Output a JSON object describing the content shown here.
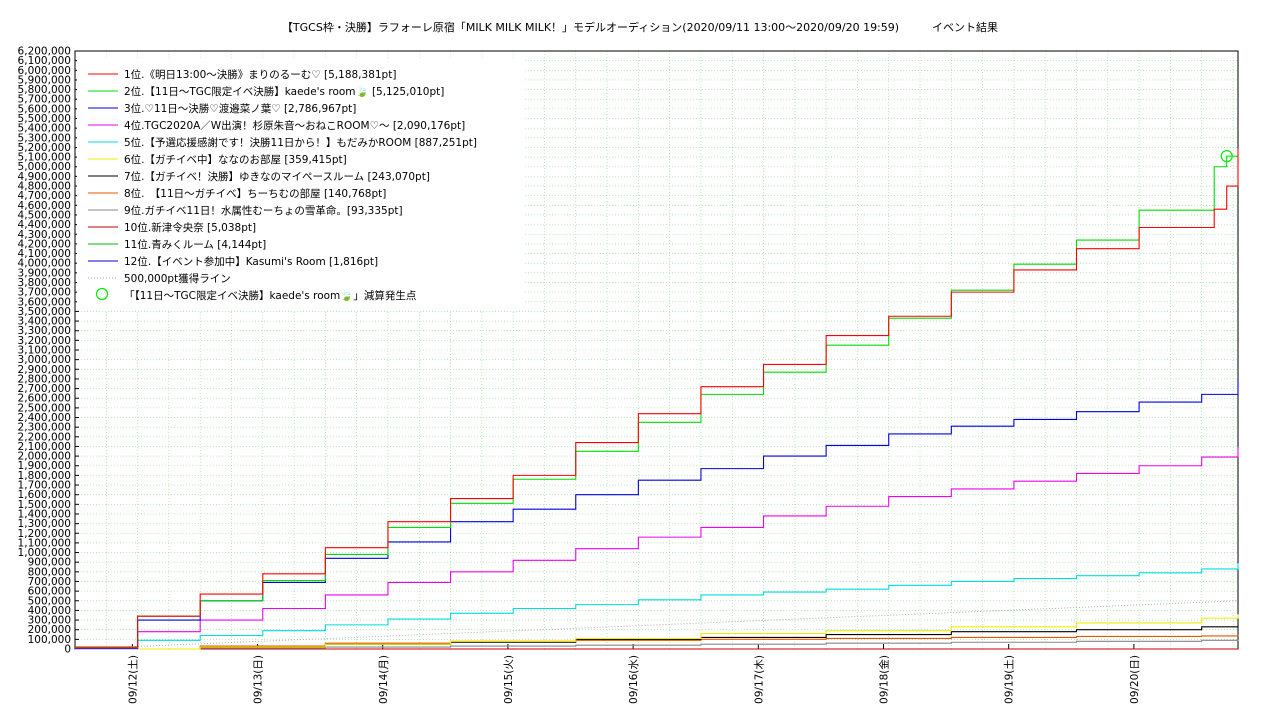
{
  "title": "【TGCS枠・決勝】ラフォーレ原宿「MILK MILK MILK！」モデルオーディション(2020/09/11 13:00〜2020/09/20 19:59)　　　イベント結果",
  "chart_data": {
    "type": "line",
    "title": "【TGCS枠・決勝】ラフォーレ原宿「MILK MILK MILK！」モデルオーディション(2020/09/11 13:00〜2020/09/20 19:59)　　　イベント結果",
    "xlabel": "",
    "ylabel": "",
    "x_range": [
      "2020/09/11 13:00",
      "2020/09/20 19:59"
    ],
    "x_ticks": [
      "09/12(土)",
      "09/13(日)",
      "09/14(月)",
      "09/15(火)",
      "09/16(水)",
      "09/17(木)",
      "09/18(金)",
      "09/19(土)",
      "09/20(日)"
    ],
    "ylim": [
      0,
      6200000
    ],
    "y_tick_step": 100000,
    "grid": true,
    "legend_position": "top-left",
    "series": [
      {
        "name": "1位.《明日13:00〜決勝》まりのるーむ♡ [5,188,381pt]",
        "color": "#ff0000",
        "x_days": [
          0,
          0.5,
          1,
          1.5,
          2,
          2.5,
          3,
          3.5,
          4,
          4.5,
          5,
          5.5,
          6,
          6.5,
          7,
          7.5,
          8,
          8.5,
          9.1,
          9.2,
          9.29
        ],
        "values": [
          20000,
          340000,
          570000,
          780000,
          1050000,
          1320000,
          1560000,
          1800000,
          2140000,
          2440000,
          2720000,
          2950000,
          3250000,
          3450000,
          3700000,
          3930000,
          4150000,
          4370000,
          4560000,
          4800000,
          5188381
        ]
      },
      {
        "name": "2位.【11日〜TGC限定イベ決勝】kaede's room🍃 [5,125,010pt]",
        "color": "#00dd00",
        "x_days": [
          0,
          0.5,
          1,
          1.5,
          2,
          2.5,
          3,
          3.5,
          4,
          4.5,
          5,
          5.5,
          6,
          6.5,
          7,
          7.5,
          8,
          8.5,
          9.1,
          9.2,
          9.29
        ],
        "values": [
          15000,
          340000,
          500000,
          710000,
          980000,
          1260000,
          1510000,
          1760000,
          2050000,
          2350000,
          2640000,
          2870000,
          3150000,
          3430000,
          3720000,
          3990000,
          4240000,
          4550000,
          5000000,
          5110000,
          5125010
        ]
      },
      {
        "name": "3位.♡11日〜決勝♡渡邉菜ノ葉♡ [2,786,967pt]",
        "color": "#0000dd",
        "x_days": [
          0,
          0.5,
          1,
          1.5,
          2,
          2.5,
          3,
          3.5,
          4,
          4.5,
          5,
          5.5,
          6,
          6.5,
          7,
          7.5,
          8,
          8.5,
          9,
          9.29
        ],
        "values": [
          10000,
          300000,
          500000,
          690000,
          940000,
          1110000,
          1320000,
          1450000,
          1600000,
          1750000,
          1870000,
          2000000,
          2110000,
          2230000,
          2310000,
          2380000,
          2460000,
          2560000,
          2640000,
          2786967
        ]
      },
      {
        "name": "4位.TGC2020A／W出演！杉原朱音〜おねこROOM♡〜 [2,090,176pt]",
        "color": "#ee00ee",
        "x_days": [
          0,
          0.5,
          1,
          1.5,
          2,
          2.5,
          3,
          3.5,
          4,
          4.5,
          5,
          5.5,
          6,
          6.5,
          7,
          7.5,
          8,
          8.5,
          9,
          9.29
        ],
        "values": [
          5000,
          180000,
          300000,
          420000,
          560000,
          690000,
          800000,
          920000,
          1040000,
          1160000,
          1260000,
          1380000,
          1480000,
          1580000,
          1660000,
          1740000,
          1820000,
          1900000,
          1990000,
          2090176
        ]
      },
      {
        "name": "5位.【予選応援感謝です！決勝11日から！】もだみかROOM [887,251pt]",
        "color": "#00dddd",
        "x_days": [
          0,
          0.5,
          1,
          1.5,
          2,
          2.5,
          3,
          3.5,
          4,
          4.5,
          5,
          5.5,
          6,
          6.5,
          7,
          7.5,
          8,
          8.5,
          9,
          9.29
        ],
        "values": [
          3000,
          90000,
          140000,
          190000,
          250000,
          310000,
          370000,
          420000,
          460000,
          510000,
          560000,
          590000,
          620000,
          660000,
          700000,
          730000,
          760000,
          790000,
          830000,
          887251
        ]
      },
      {
        "name": "6位.【ガチイベ中】ななのお部屋 [359,415pt]",
        "color": "#eeee00",
        "x_days": [
          0,
          1,
          2,
          3,
          4,
          5,
          6,
          7,
          8,
          9,
          9.29
        ],
        "values": [
          0,
          20000,
          50000,
          80000,
          110000,
          160000,
          190000,
          230000,
          270000,
          320000,
          359415
        ]
      },
      {
        "name": "7位.【ガチイベ！決勝】ゆきなのマイペースルーム [243,070pt]",
        "color": "#000000",
        "x_days": [
          0,
          1,
          2,
          3,
          4,
          5,
          6,
          7,
          8,
          9,
          9.29
        ],
        "values": [
          0,
          20000,
          50000,
          70000,
          100000,
          120000,
          150000,
          180000,
          200000,
          230000,
          243070
        ]
      },
      {
        "name": "8位.　【11日〜ガチイベ】ちーちむの部屋 [140,768pt]",
        "color": "#ee5500",
        "x_days": [
          0,
          1,
          2,
          3,
          4,
          5,
          6,
          7,
          8,
          9,
          9.29
        ],
        "values": [
          0,
          30000,
          60000,
          80000,
          90000,
          100000,
          110000,
          120000,
          130000,
          135000,
          140768
        ]
      },
      {
        "name": "9位.ガチイベ11日！水属性むーちょの雪革命。[93,335pt]",
        "color": "#888888",
        "x_days": [
          0,
          1,
          2,
          3,
          4,
          5,
          6,
          7,
          8,
          9,
          9.29
        ],
        "values": [
          0,
          10000,
          20000,
          30000,
          40000,
          50000,
          60000,
          70000,
          80000,
          90000,
          93335
        ]
      },
      {
        "name": "10位.新津令央奈 [5,038pt]",
        "color": "#cc0000",
        "x_days": [
          0,
          9.29
        ],
        "values": [
          0,
          5038
        ]
      },
      {
        "name": "11位.青みくルーム [4,144pt]",
        "color": "#00bb00",
        "x_days": [
          0,
          9.29
        ],
        "values": [
          0,
          4144
        ]
      },
      {
        "name": "12位.【イベント参加中】Kasumi's Room [1,816pt]",
        "color": "#0000cc",
        "x_days": [
          0,
          9.29
        ],
        "values": [
          0,
          1816
        ]
      }
    ],
    "reference_line": {
      "name": "500,000pt獲得ライン",
      "color": "#aaaaaa",
      "x_days": [
        0,
        9.29
      ],
      "values": [
        0,
        500000
      ]
    },
    "marker": {
      "name": "「【11日〜TGC限定イベ決勝】kaede's room🍃」減算発生点",
      "color": "#00ee00",
      "x_day": 9.2,
      "value": 5110000
    }
  }
}
